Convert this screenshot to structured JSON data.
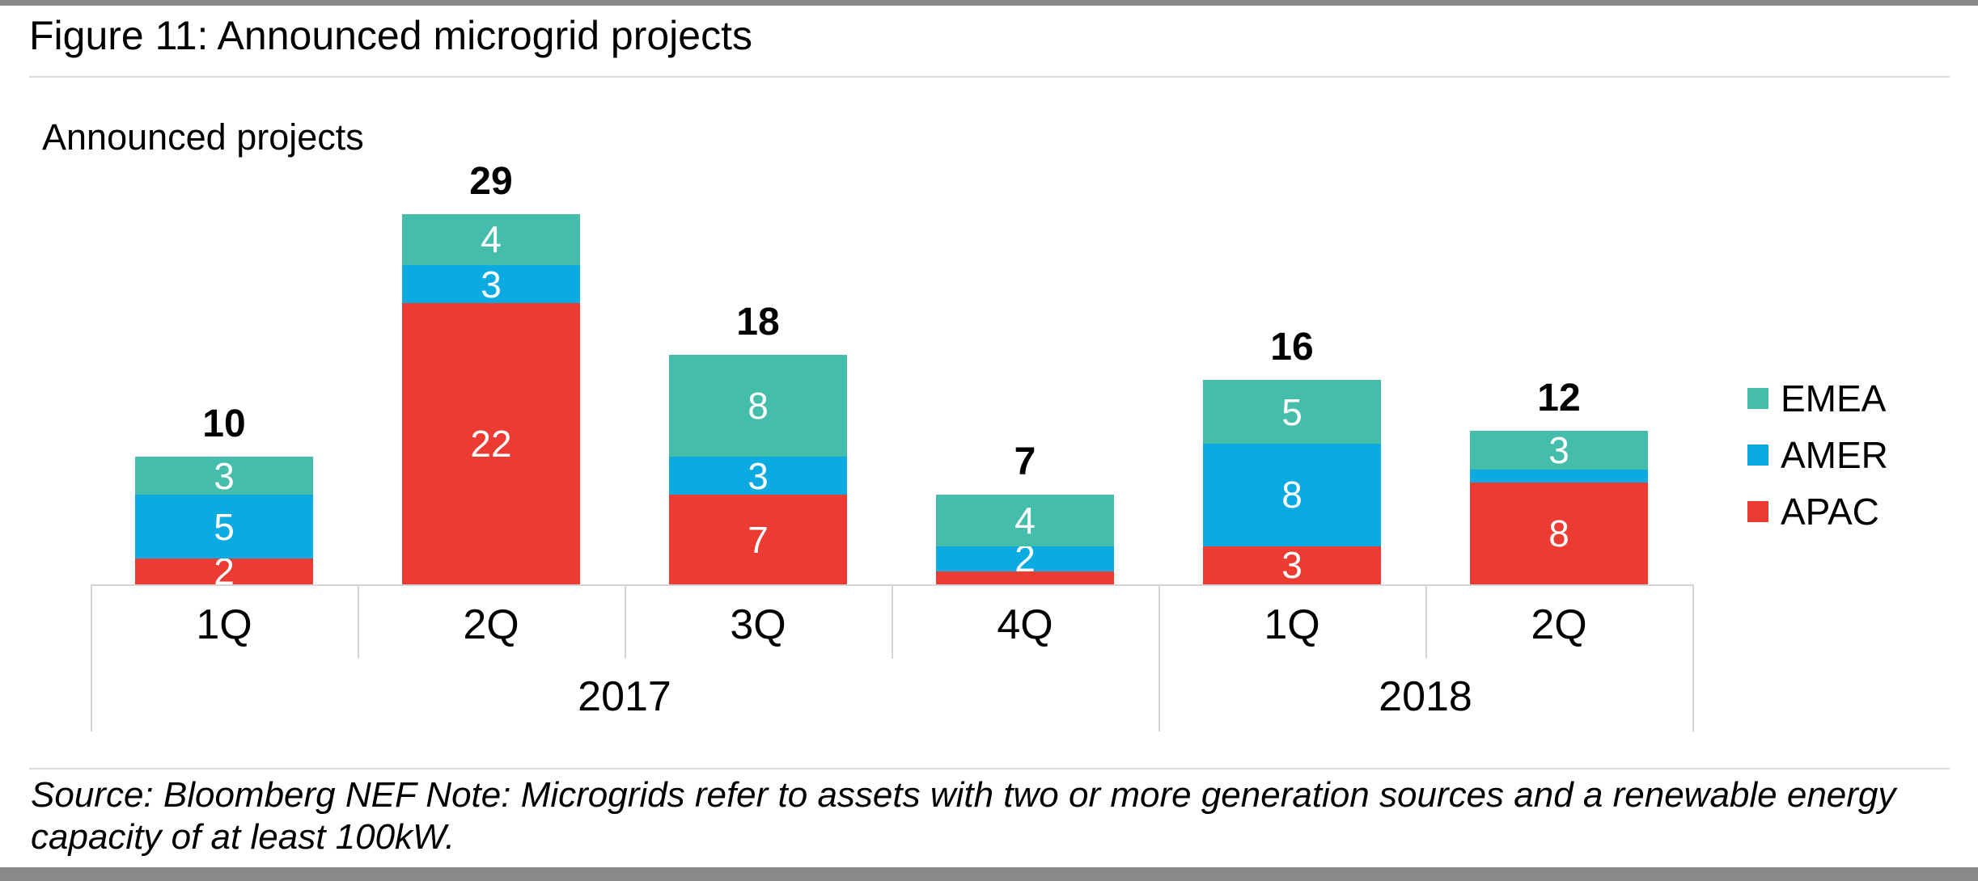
{
  "page": {
    "figure_title": "Figure 11: Announced microgrid projects",
    "chart_heading": "Announced projects",
    "source_note": "Source: Bloomberg NEF Note: Microgrids refer to assets with two or more generation sources and a renewable energy capacity of at least 100kW."
  },
  "colors": {
    "emea_teal": "#45BDAB",
    "amer_blue": "#0BABE1",
    "apac_red": "#EB3B32",
    "frame_gray": "#8A8A8A",
    "rule_gray": "#DBDBDB",
    "axis_line_gray": "#D4D4D4",
    "value_label_white": "#FFFFFF",
    "text_black": "#000000"
  },
  "chart_data": {
    "type": "bar",
    "stacked": true,
    "title": "Announced projects",
    "categories": [
      "1Q",
      "2Q",
      "3Q",
      "4Q",
      "1Q",
      "2Q"
    ],
    "year_groups": [
      {
        "label": "2017",
        "span": 4
      },
      {
        "label": "2018",
        "span": 2
      }
    ],
    "series": [
      {
        "name": "APAC",
        "color": "#EB3B32",
        "values": [
          2,
          22,
          7,
          1,
          3,
          8
        ]
      },
      {
        "name": "AMER",
        "color": "#0BABE1",
        "values": [
          5,
          3,
          3,
          2,
          8,
          1
        ]
      },
      {
        "name": "EMEA",
        "color": "#45BDAB",
        "values": [
          3,
          4,
          8,
          4,
          5,
          3
        ]
      }
    ],
    "totals": [
      10,
      29,
      18,
      7,
      16,
      12
    ],
    "legend_order_top_to_bottom": [
      "EMEA",
      "AMER",
      "APAC"
    ],
    "legend_position": "right",
    "value_label_min": 2,
    "xlabel": "",
    "ylabel": "",
    "grid": false
  }
}
